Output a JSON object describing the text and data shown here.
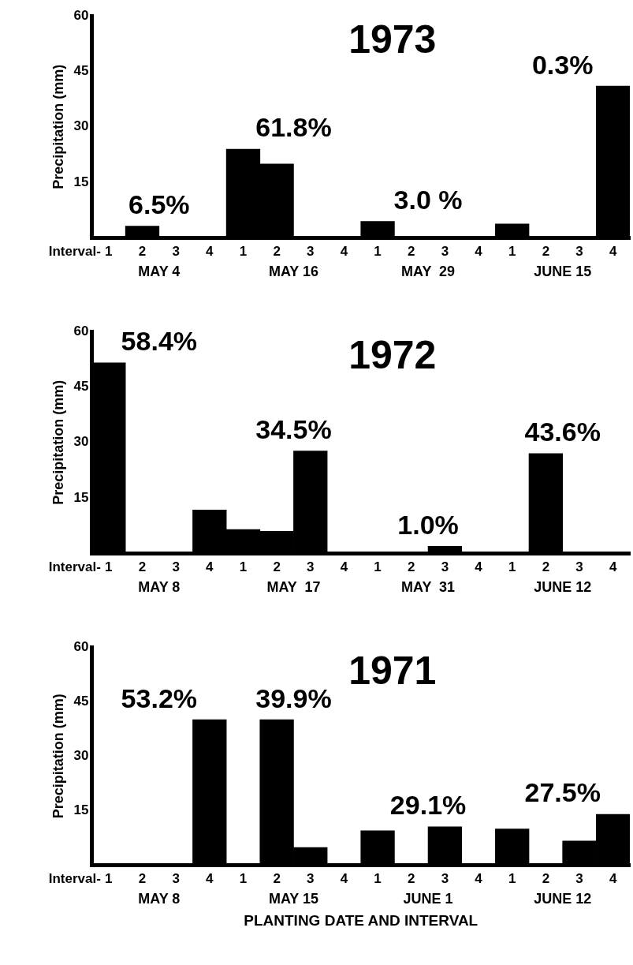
{
  "chart_data": [
    {
      "type": "bar",
      "title": "1973",
      "ylabel": "Precipitation (mm)",
      "categories": [
        "1",
        "2",
        "3",
        "4",
        "1",
        "2",
        "3",
        "4",
        "1",
        "2",
        "3",
        "4",
        "1",
        "2",
        "3",
        "4"
      ],
      "series": [
        {
          "color": "#000000",
          "values": [
            0,
            3.2,
            0,
            0,
            24,
            20,
            0,
            0,
            4.5,
            0,
            0,
            0,
            3.8,
            0,
            0,
            41
          ]
        }
      ],
      "ylim": [
        0,
        60
      ],
      "yticks": [
        15,
        30,
        45,
        60
      ],
      "grid": false,
      "legend": false,
      "annotations": [
        "6.5%",
        "61.8%",
        "3.0 %",
        "0.3%",
        "Interval-",
        "MAY 4",
        "MAY 16",
        "MAY  29",
        "JUNE 15"
      ]
    },
    {
      "type": "bar",
      "title": "1972",
      "ylabel": "Precipitation (mm)",
      "categories": [
        "1",
        "2",
        "3",
        "4",
        "1",
        "2",
        "3",
        "4",
        "1",
        "2",
        "3",
        "4",
        "1",
        "2",
        "3",
        "4"
      ],
      "series": [
        {
          "color": "#000000",
          "values": [
            51.5,
            0,
            0,
            11.8,
            6.5,
            6,
            27.7,
            0,
            0,
            0,
            2,
            0,
            0,
            27,
            0,
            0
          ]
        }
      ],
      "ylim": [
        0,
        60
      ],
      "yticks": [
        15,
        30,
        45,
        60
      ],
      "grid": false,
      "legend": false,
      "annotations": [
        "58.4%",
        "34.5%",
        "1.0%",
        "43.6%",
        "Interval-",
        "MAY 8",
        "MAY  17",
        "MAY  31",
        "JUNE 12"
      ]
    },
    {
      "type": "bar",
      "title": "1971",
      "ylabel": "Precipitation (mm)",
      "xlabel": "PLANTING DATE AND INTERVAL",
      "categories": [
        "1",
        "2",
        "3",
        "4",
        "1",
        "2",
        "3",
        "4",
        "1",
        "2",
        "3",
        "4",
        "1",
        "2",
        "3",
        "4"
      ],
      "series": [
        {
          "color": "#000000",
          "values": [
            0,
            0,
            0,
            40,
            0,
            40,
            4.9,
            0,
            9.5,
            0,
            10.6,
            0,
            10,
            0,
            6.7,
            14
          ]
        }
      ],
      "ylim": [
        0,
        60
      ],
      "yticks": [
        15,
        30,
        45,
        60
      ],
      "grid": false,
      "legend": false,
      "annotations": [
        "53.2%",
        "39.9%",
        "29.1%",
        "27.5%",
        "Interval-",
        "MAY 8",
        "MAY 15",
        "JUNE 1",
        "JUNE 12"
      ]
    }
  ]
}
